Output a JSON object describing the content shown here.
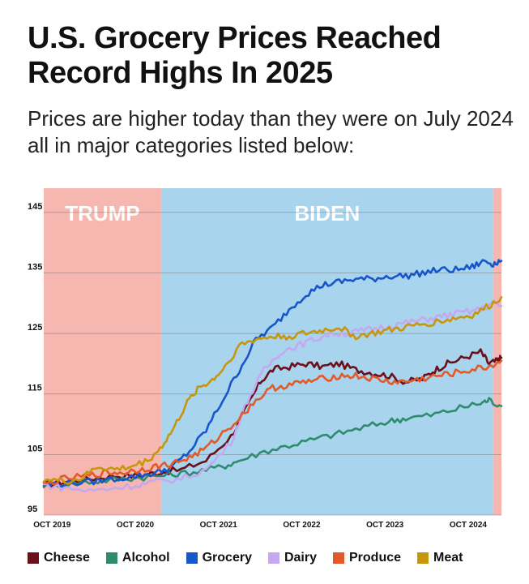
{
  "title": "U.S. Grocery Prices Reached Record Highs In 2025",
  "subtitle": "Prices are higher today than they were on July 2024 all in major categories listed below:",
  "chart_data": {
    "type": "line",
    "ylim": [
      95,
      149
    ],
    "yticks": [
      95,
      105,
      115,
      125,
      135,
      145
    ],
    "xlim": [
      2019.65,
      2025.15
    ],
    "xticks": [
      {
        "x": 2019.75,
        "label": "OCT 2019"
      },
      {
        "x": 2020.75,
        "label": "OCT 2020"
      },
      {
        "x": 2021.75,
        "label": "OCT 2021"
      },
      {
        "x": 2022.75,
        "label": "OCT 2022"
      },
      {
        "x": 2023.75,
        "label": "OCT 2023"
      },
      {
        "x": 2024.75,
        "label": "OCT 2024"
      }
    ],
    "grid": true,
    "shaded_periods": [
      {
        "label": "TRUMP",
        "start": 2019.65,
        "end": 2021.06,
        "color": "#f6b7b0"
      },
      {
        "label": "BIDEN",
        "start": 2021.06,
        "end": 2025.05,
        "color": "#a9d4ee"
      },
      {
        "label": "",
        "start": 2025.05,
        "end": 2025.15,
        "color": "#f6b7b0"
      }
    ],
    "series": [
      {
        "name": "Cheese",
        "color": "#6b0f1a",
        "x": [
          2019.65,
          2019.9,
          2020.2,
          2020.5,
          2020.8,
          2021.0,
          2021.3,
          2021.6,
          2021.9,
          2022.1,
          2022.25,
          2022.4,
          2022.6,
          2022.8,
          2023.0,
          2023.2,
          2023.4,
          2023.6,
          2023.8,
          2024.0,
          2024.2,
          2024.35,
          2024.5,
          2024.7,
          2024.9,
          2025.0,
          2025.1,
          2025.15
        ],
        "y": [
          100,
          100.5,
          101,
          101.5,
          101.5,
          102,
          102.5,
          104,
          108,
          113,
          117,
          119,
          119.5,
          120,
          119.5,
          120,
          119,
          118.5,
          118,
          117,
          117.5,
          119,
          120,
          121,
          122,
          120,
          120.5,
          121
        ]
      },
      {
        "name": "Alcohol",
        "color": "#2e8b6e",
        "x": [
          2019.65,
          2020.0,
          2020.3,
          2020.6,
          2020.9,
          2021.2,
          2021.5,
          2021.8,
          2022.0,
          2022.3,
          2022.6,
          2022.9,
          2023.2,
          2023.5,
          2023.8,
          2024.0,
          2024.3,
          2024.6,
          2024.9,
          2025.0,
          2025.15
        ],
        "y": [
          100,
          100.3,
          100.6,
          101,
          101.3,
          101.7,
          102.2,
          103,
          104,
          105.5,
          106.5,
          107.5,
          108.5,
          109.5,
          110.5,
          111,
          111.5,
          112.5,
          113.5,
          114,
          113
        ]
      },
      {
        "name": "Grocery",
        "color": "#1656c9",
        "x": [
          2019.65,
          2019.9,
          2020.2,
          2020.5,
          2020.8,
          2021.0,
          2021.2,
          2021.4,
          2021.6,
          2021.8,
          2022.0,
          2022.2,
          2022.4,
          2022.6,
          2022.8,
          2023.0,
          2023.2,
          2023.4,
          2023.6,
          2023.8,
          2024.0,
          2024.2,
          2024.4,
          2024.6,
          2024.8,
          2024.95,
          2025.05,
          2025.15
        ],
        "y": [
          100,
          100.2,
          100.5,
          101,
          101.5,
          102,
          103,
          105.5,
          109,
          114,
          119,
          124,
          126,
          129,
          131.5,
          133,
          133.5,
          134,
          134,
          134.5,
          134.5,
          135,
          135.5,
          135.5,
          136,
          137,
          136.5,
          137
        ]
      },
      {
        "name": "Dairy",
        "color": "#c4a8f0",
        "x": [
          2019.65,
          2019.9,
          2020.2,
          2020.5,
          2020.8,
          2021.0,
          2021.3,
          2021.6,
          2021.9,
          2022.1,
          2022.3,
          2022.5,
          2022.7,
          2022.9,
          2023.1,
          2023.3,
          2023.5,
          2023.7,
          2023.9,
          2024.1,
          2024.3,
          2024.5,
          2024.7,
          2024.9,
          2025.05,
          2025.15
        ],
        "y": [
          100,
          99.5,
          99,
          99.5,
          100,
          100.5,
          101,
          102.5,
          107,
          114,
          119,
          122,
          123,
          124,
          125,
          125,
          125.5,
          126,
          126.5,
          127,
          127.5,
          128,
          128.5,
          129,
          130,
          129.5
        ]
      },
      {
        "name": "Produce",
        "color": "#e15a2a",
        "x": [
          2019.65,
          2019.9,
          2020.2,
          2020.4,
          2020.6,
          2020.8,
          2021.0,
          2021.2,
          2021.4,
          2021.6,
          2021.8,
          2022.0,
          2022.2,
          2022.4,
          2022.6,
          2022.8,
          2023.0,
          2023.2,
          2023.4,
          2023.6,
          2023.8,
          2024.0,
          2024.2,
          2024.4,
          2024.6,
          2024.8,
          2025.0,
          2025.15
        ],
        "y": [
          100,
          101,
          101.5,
          102,
          102,
          102.5,
          103,
          103.5,
          104.5,
          106,
          108.5,
          111,
          114,
          116,
          116.5,
          117,
          117.5,
          118,
          118,
          117.5,
          117,
          117,
          117.5,
          118,
          118.5,
          119,
          119.5,
          120.5
        ]
      },
      {
        "name": "Meat",
        "color": "#c8960e",
        "x": [
          2019.65,
          2019.9,
          2020.1,
          2020.3,
          2020.5,
          2020.7,
          2020.9,
          2021.05,
          2021.2,
          2021.35,
          2021.5,
          2021.65,
          2021.8,
          2022.0,
          2022.2,
          2022.4,
          2022.6,
          2022.8,
          2023.0,
          2023.2,
          2023.4,
          2023.6,
          2023.8,
          2024.0,
          2024.2,
          2024.4,
          2024.6,
          2024.8,
          2025.0,
          2025.15
        ],
        "y": [
          101,
          100.5,
          101,
          103,
          102.5,
          103,
          104,
          106,
          109,
          113,
          116,
          117,
          119,
          123,
          124,
          124.5,
          124.5,
          125,
          125.5,
          126,
          124.5,
          125,
          125.5,
          126,
          126.5,
          127,
          127.5,
          128,
          129.5,
          131
        ]
      }
    ]
  }
}
